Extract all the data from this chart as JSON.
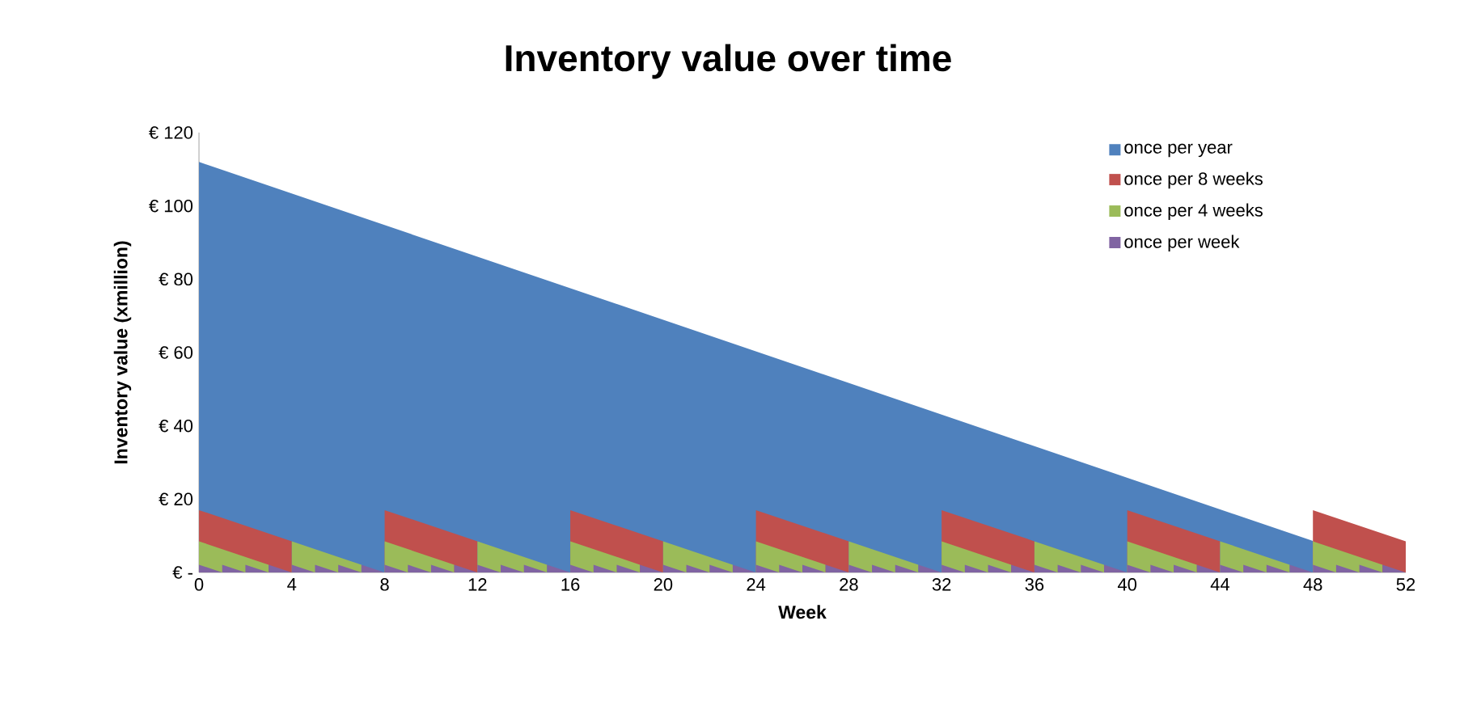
{
  "chart_data": {
    "type": "area",
    "title": "Inventory value over time",
    "xlabel": "Week",
    "ylabel": "Inventory value (xmillion)",
    "xlim": [
      0,
      52
    ],
    "xticks": [
      0,
      4,
      8,
      12,
      16,
      20,
      24,
      28,
      32,
      36,
      40,
      44,
      48,
      52
    ],
    "ylim": [
      0,
      120
    ],
    "yticks": [
      {
        "value": 0,
        "label": "€ -"
      },
      {
        "value": 20,
        "label": "€ 20"
      },
      {
        "value": 40,
        "label": "€ 40"
      },
      {
        "value": 60,
        "label": "€ 60"
      },
      {
        "value": 80,
        "label": "€ 80"
      },
      {
        "value": 100,
        "label": "€ 100"
      },
      {
        "value": 120,
        "label": "€ 120"
      }
    ],
    "legend": "top right",
    "series": [
      {
        "name": "once per year",
        "color": "#4f81bd",
        "x": [
          0,
          48,
          48,
          52
        ],
        "values": [
          112,
          8.6,
          0,
          0
        ]
      },
      {
        "name": "once per 8 weeks",
        "color": "#c0504d",
        "x": [
          0,
          4,
          4,
          8,
          8,
          12,
          12,
          16,
          16,
          20,
          20,
          24,
          24,
          28,
          28,
          32,
          32,
          36,
          36,
          40,
          40,
          44,
          44,
          48,
          48,
          52
        ],
        "values": [
          17,
          8.5,
          0,
          0,
          17,
          8.5,
          0,
          0,
          17,
          8.5,
          0,
          0,
          17,
          8.5,
          0,
          0,
          17,
          8.5,
          0,
          0,
          17,
          8.5,
          0,
          0,
          17,
          8.5
        ]
      },
      {
        "name": "once per 4 weeks",
        "color": "#9bbb59",
        "x": [
          0,
          3,
          3,
          4,
          4,
          7,
          7,
          8,
          8,
          11,
          11,
          12,
          12,
          15,
          15,
          16,
          16,
          19,
          19,
          20,
          20,
          23,
          23,
          24,
          24,
          27,
          27,
          28,
          28,
          31,
          31,
          32,
          32,
          35,
          35,
          36,
          36,
          39,
          39,
          40,
          40,
          43,
          43,
          44,
          44,
          47,
          47,
          48,
          48,
          51,
          51,
          52
        ],
        "values": [
          8.5,
          2.1,
          0,
          0,
          8.5,
          2.1,
          0,
          0,
          8.5,
          2.1,
          0,
          0,
          8.5,
          2.1,
          0,
          0,
          8.5,
          2.1,
          0,
          0,
          8.5,
          2.1,
          0,
          0,
          8.5,
          2.1,
          0,
          0,
          8.5,
          2.1,
          0,
          0,
          8.5,
          2.1,
          0,
          0,
          8.5,
          2.1,
          0,
          0,
          8.5,
          2.1,
          0,
          0,
          8.5,
          2.1,
          0,
          0,
          8.5,
          2.1,
          0,
          0
        ]
      },
      {
        "name": "once per week",
        "color": "#8064a2",
        "x": [
          0,
          1,
          1,
          2,
          2,
          3,
          3,
          4,
          4,
          5,
          5,
          6,
          6,
          7,
          7,
          8,
          8,
          9,
          9,
          10,
          10,
          11,
          11,
          12,
          12,
          13,
          13,
          14,
          14,
          15,
          15,
          16,
          16,
          17,
          17,
          18,
          18,
          19,
          19,
          20,
          20,
          21,
          21,
          22,
          22,
          23,
          23,
          24,
          24,
          25,
          25,
          26,
          26,
          27,
          27,
          28,
          28,
          29,
          29,
          30,
          30,
          31,
          31,
          32,
          32,
          33,
          33,
          34,
          34,
          35,
          35,
          36,
          36,
          37,
          37,
          38,
          38,
          39,
          39,
          40,
          40,
          41,
          41,
          42,
          42,
          43,
          43,
          44,
          44,
          45,
          45,
          46,
          46,
          47,
          47,
          48,
          48,
          49,
          49,
          50,
          50,
          51,
          51,
          52
        ],
        "values": [
          2.1,
          0,
          2.1,
          0,
          2.1,
          0,
          2.1,
          0,
          2.1,
          0,
          2.1,
          0,
          2.1,
          0,
          2.1,
          0,
          2.1,
          0,
          2.1,
          0,
          2.1,
          0,
          2.1,
          0,
          2.1,
          0,
          2.1,
          0,
          2.1,
          0,
          2.1,
          0,
          2.1,
          0,
          2.1,
          0,
          2.1,
          0,
          2.1,
          0,
          2.1,
          0,
          2.1,
          0,
          2.1,
          0,
          2.1,
          0,
          2.1,
          0,
          2.1,
          0,
          2.1,
          0,
          2.1,
          0,
          2.1,
          0,
          2.1,
          0,
          2.1,
          0,
          2.1,
          0,
          2.1,
          0,
          2.1,
          0,
          2.1,
          0,
          2.1,
          0,
          2.1,
          0,
          2.1,
          0,
          2.1,
          0,
          2.1,
          0,
          2.1,
          0,
          2.1,
          0,
          2.1,
          0,
          2.1,
          0,
          2.1,
          0,
          2.1,
          0,
          2.1,
          0,
          2.1,
          0,
          2.1,
          0,
          2.1,
          0,
          2.1,
          0,
          2.1,
          0
        ]
      }
    ]
  }
}
